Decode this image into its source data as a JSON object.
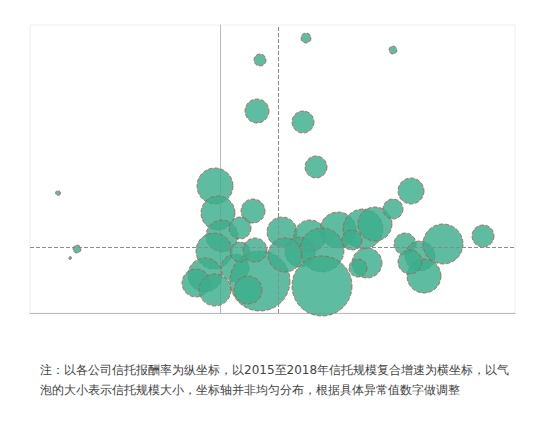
{
  "chart_data": {
    "type": "scatter",
    "marker": "circle",
    "color": "#3aae8c",
    "note": "注：以各公司信托报酬率为纵坐标，以2015至2018年信托规模复合增速为横坐标，以气泡的大小表示信托规模大小，坐标轴并非均匀分布，根据具体异常值数字做调整",
    "xlim": [
      -19,
      29.5
    ],
    "ylim": [
      0,
      28.8
    ],
    "tick_labels": false,
    "grid": false,
    "reference_lines": {
      "x": 5.8,
      "y": 6.6
    },
    "x": [
      8.6,
      17.3,
      4.0,
      3.7,
      8.3,
      9.6,
      19.1,
      -16.2,
      -14.3,
      -15.0,
      -0.5,
      -0.2,
      0.2,
      3.3,
      2.0,
      -0.6,
      -1.5,
      -2.4,
      -0.5,
      1.5,
      4.0,
      6.2,
      9.0,
      11.8,
      14.3,
      15.5,
      17.3,
      8.0,
      10.2,
      6.5,
      10.2,
      14.7,
      13.8,
      13.2,
      18.5,
      20.0,
      22.3,
      20.4,
      26.3,
      19.0,
      2.0,
      3.5,
      2.8
    ],
    "y": [
      27.5,
      26.3,
      25.3,
      20.2,
      19.1,
      14.6,
      12.2,
      12.0,
      6.4,
      5.5,
      12.7,
      10.0,
      7.7,
      10.2,
      8.5,
      6.2,
      3.8,
      3.0,
      2.3,
      4.5,
      3.2,
      8.1,
      7.7,
      8.3,
      8.4,
      8.9,
      10.4,
      6.1,
      6.3,
      5.8,
      2.7,
      5.0,
      4.5,
      7.3,
      6.9,
      5.7,
      6.9,
      3.7,
      7.7,
      5.1,
      6.1,
      6.3,
      2.3
    ],
    "sizes": [
      25,
      16,
      36,
      144,
      121,
      121,
      169,
      6,
      16,
      2,
      324,
      289,
      256,
      144,
      121,
      324,
      289,
      196,
      256,
      196,
      900,
      225,
      256,
      324,
      400,
      289,
      100,
      225,
      484,
      289,
      900,
      225,
      81,
      100,
      121,
      225,
      400,
      289,
      121,
      144,
      100,
      144,
      196
    ]
  }
}
